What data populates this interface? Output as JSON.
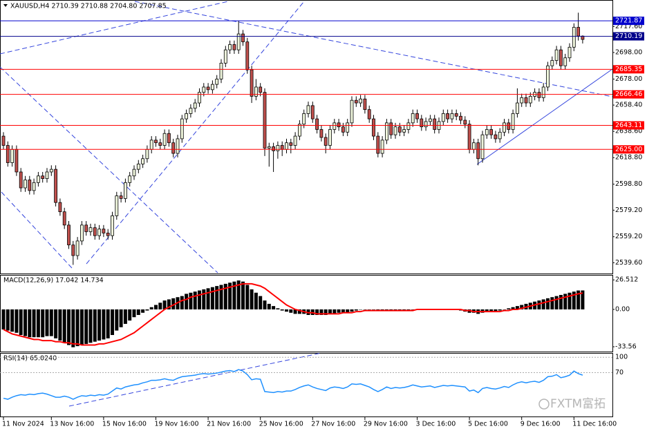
{
  "watermark": "FXTM富拓",
  "chart_data": [
    {
      "type": "candlestick",
      "title": "XAUUSD,H4  2710.39 2710.88 2704.80 2707.85",
      "bull_color": "#eef5dc",
      "bear_color": "#c0504d",
      "open": [
        2635,
        2628,
        2615,
        2625,
        2608,
        2596,
        2602,
        2594,
        2600,
        2605,
        2603,
        2608,
        2610,
        2585,
        2578,
        2568,
        2553,
        2545,
        2556,
        2568,
        2563,
        2566,
        2560,
        2565,
        2562,
        2560,
        2575,
        2590,
        2588,
        2600,
        2605,
        2610,
        2614,
        2618,
        2625,
        2632,
        2630,
        2628,
        2637,
        2630,
        2622,
        2633,
        2648,
        2652,
        2656,
        2660,
        2668,
        2672,
        2670,
        2674,
        2678,
        2690,
        2700,
        2704,
        2700,
        2712,
        2706,
        2685,
        2665,
        2672,
        2668,
        2626,
        2627,
        2624,
        2628,
        2625,
        2630,
        2628,
        2635,
        2644,
        2652,
        2658,
        2648,
        2640,
        2634,
        2628,
        2640,
        2645,
        2642,
        2638,
        2645,
        2662,
        2660,
        2663,
        2655,
        2648,
        2635,
        2622,
        2632,
        2645,
        2636,
        2642,
        2638,
        2640,
        2645,
        2652,
        2648,
        2642,
        2646,
        2648,
        2640,
        2646,
        2652,
        2648,
        2652,
        2650,
        2647,
        2644,
        2625,
        2630,
        2618,
        2636,
        2640,
        2636,
        2633,
        2638,
        2645,
        2640,
        2652,
        2660,
        2664,
        2660,
        2665,
        2668,
        2664,
        2672,
        2688,
        2692,
        2700,
        2688,
        2694,
        2702,
        2717,
        2710.39
      ],
      "high": [
        2638,
        2631,
        2628,
        2628,
        2611,
        2605,
        2605,
        2603,
        2608,
        2608,
        2611,
        2613,
        2613,
        2588,
        2581,
        2571,
        2556,
        2559,
        2571,
        2571,
        2569,
        2569,
        2568,
        2568,
        2565,
        2578,
        2593,
        2593,
        2603,
        2608,
        2613,
        2617,
        2621,
        2628,
        2635,
        2635,
        2633,
        2640,
        2640,
        2633,
        2636,
        2651,
        2655,
        2659,
        2663,
        2671,
        2675,
        2675,
        2677,
        2681,
        2693,
        2703,
        2707,
        2707,
        2722,
        2715,
        2709,
        2688,
        2678,
        2675,
        2671,
        2630,
        2630,
        2631,
        2631,
        2633,
        2633,
        2638,
        2647,
        2655,
        2661,
        2661,
        2651,
        2643,
        2637,
        2643,
        2648,
        2648,
        2645,
        2648,
        2665,
        2665,
        2666,
        2666,
        2658,
        2651,
        2638,
        2635,
        2648,
        2648,
        2645,
        2645,
        2643,
        2648,
        2655,
        2655,
        2651,
        2649,
        2651,
        2651,
        2649,
        2655,
        2655,
        2655,
        2655,
        2653,
        2650,
        2647,
        2633,
        2633,
        2639,
        2643,
        2643,
        2639,
        2641,
        2648,
        2648,
        2655,
        2671,
        2667,
        2667,
        2668,
        2671,
        2671,
        2675,
        2691,
        2695,
        2703,
        2703,
        2697,
        2705,
        2720,
        2728,
        2710.88
      ],
      "low": [
        2625,
        2612,
        2612,
        2605,
        2593,
        2593,
        2591,
        2591,
        2597,
        2600,
        2600,
        2605,
        2582,
        2575,
        2565,
        2550,
        2538,
        2542,
        2553,
        2560,
        2560,
        2557,
        2557,
        2559,
        2557,
        2557,
        2572,
        2585,
        2585,
        2597,
        2602,
        2607,
        2611,
        2615,
        2622,
        2627,
        2625,
        2625,
        2627,
        2619,
        2619,
        2630,
        2645,
        2649,
        2653,
        2657,
        2665,
        2667,
        2667,
        2671,
        2675,
        2687,
        2697,
        2697,
        2697,
        2703,
        2682,
        2660,
        2662,
        2665,
        2620,
        2612,
        2608,
        2618,
        2620,
        2622,
        2622,
        2625,
        2632,
        2641,
        2649,
        2645,
        2637,
        2631,
        2622,
        2625,
        2637,
        2639,
        2635,
        2635,
        2642,
        2657,
        2657,
        2652,
        2645,
        2632,
        2619,
        2619,
        2629,
        2633,
        2633,
        2635,
        2635,
        2637,
        2642,
        2645,
        2639,
        2639,
        2643,
        2637,
        2637,
        2643,
        2645,
        2645,
        2647,
        2644,
        2641,
        2622,
        2622,
        2613,
        2615,
        2633,
        2633,
        2630,
        2630,
        2635,
        2637,
        2637,
        2649,
        2657,
        2657,
        2657,
        2662,
        2661,
        2661,
        2669,
        2685,
        2689,
        2685,
        2685,
        2691,
        2699,
        2707,
        2704.8
      ],
      "close": [
        2628,
        2615,
        2625,
        2608,
        2596,
        2602,
        2594,
        2600,
        2605,
        2603,
        2608,
        2610,
        2585,
        2578,
        2568,
        2553,
        2545,
        2556,
        2568,
        2563,
        2566,
        2560,
        2565,
        2562,
        2560,
        2575,
        2590,
        2588,
        2600,
        2605,
        2610,
        2614,
        2618,
        2625,
        2632,
        2630,
        2628,
        2637,
        2630,
        2622,
        2633,
        2648,
        2652,
        2656,
        2660,
        2668,
        2672,
        2670,
        2674,
        2678,
        2690,
        2700,
        2704,
        2700,
        2712,
        2706,
        2685,
        2665,
        2672,
        2668,
        2626,
        2627,
        2624,
        2628,
        2625,
        2630,
        2628,
        2635,
        2644,
        2652,
        2658,
        2648,
        2640,
        2634,
        2628,
        2640,
        2645,
        2642,
        2638,
        2645,
        2662,
        2660,
        2663,
        2655,
        2648,
        2635,
        2622,
        2632,
        2645,
        2636,
        2642,
        2638,
        2640,
        2645,
        2652,
        2648,
        2642,
        2646,
        2648,
        2640,
        2646,
        2652,
        2648,
        2652,
        2650,
        2647,
        2644,
        2625,
        2630,
        2618,
        2636,
        2640,
        2636,
        2633,
        2638,
        2645,
        2640,
        2652,
        2660,
        2664,
        2660,
        2665,
        2668,
        2664,
        2672,
        2688,
        2692,
        2700,
        2688,
        2694,
        2702,
        2717,
        2710.39,
        2707.85
      ],
      "ylim": [
        2532,
        2736
      ],
      "yticks": [
        {
          "value": 2717.6,
          "label": "2717.60"
        },
        {
          "value": 2698,
          "label": "2698.00"
        },
        {
          "value": 2678,
          "label": "2678.00"
        },
        {
          "value": 2658.4,
          "label": "2658.40"
        },
        {
          "value": 2638.6,
          "label": "2638.60"
        },
        {
          "value": 2618.8,
          "label": "2618.80"
        },
        {
          "value": 2598.8,
          "label": "2598.80"
        },
        {
          "value": 2579.2,
          "label": "2579.20"
        },
        {
          "value": 2559.2,
          "label": "2559.20"
        },
        {
          "value": 2539.6,
          "label": "2539.60"
        }
      ],
      "levels": [
        {
          "value": 2721.87,
          "color": "#0000cd"
        },
        {
          "value": 2710.19,
          "color": "#00008b"
        },
        {
          "value": 2685.35,
          "color": "#ff0000"
        },
        {
          "value": 2666.46,
          "color": "#ff0000"
        },
        {
          "value": 2643.11,
          "color": "#ff0000"
        },
        {
          "value": 2625,
          "label": "2625.00",
          "color": "#ff0000"
        }
      ],
      "xticks": [
        {
          "value": 0,
          "label": "11 Nov 2024"
        },
        {
          "value": 11,
          "label": "13 Nov 16:00"
        },
        {
          "value": 23,
          "label": "15 Nov 16:00"
        },
        {
          "value": 35,
          "label": "19 Nov 16:00"
        },
        {
          "value": 47,
          "label": "21 Nov 16:00"
        },
        {
          "value": 59,
          "label": "25 Nov 16:00"
        },
        {
          "value": 71,
          "label": "27 Nov 16:00"
        },
        {
          "value": 83,
          "label": "29 Nov 16:00"
        },
        {
          "value": 95,
          "label": "3 Dec 16:00"
        },
        {
          "value": 107,
          "label": "5 Dec 16:00"
        },
        {
          "value": 119,
          "label": "9 Dec 16:00"
        },
        {
          "value": 131,
          "label": "11 Dec 16:00"
        }
      ]
    },
    {
      "type": "macd",
      "title": "MACD(12,26,9) 17.042 14.734",
      "color": "#000000",
      "signal_color": "#ff0000",
      "values": [
        -18,
        -19,
        -20,
        -21,
        -23,
        -24,
        -25,
        -25,
        -25,
        -25,
        -24,
        -24,
        -26,
        -28,
        -30,
        -32,
        -34,
        -33,
        -32,
        -31,
        -30,
        -29,
        -28,
        -27,
        -26,
        -23,
        -19,
        -16,
        -13,
        -10,
        -7,
        -5,
        -3,
        -1,
        2,
        4,
        6,
        8,
        9,
        10,
        11,
        12,
        14,
        15,
        16,
        17,
        18,
        19,
        20,
        21,
        22,
        23,
        24,
        25,
        26,
        25,
        22,
        18,
        15,
        12,
        8,
        5,
        3,
        1,
        -1,
        -2,
        -3,
        -4,
        -4,
        -4,
        -5,
        -5,
        -5,
        -5,
        -5,
        -4,
        -4,
        -3,
        -3,
        -3,
        -2,
        -1,
        0,
        0,
        0,
        0,
        -1,
        -1,
        -1,
        -1,
        -1,
        -1,
        -1,
        -1,
        0,
        0,
        0,
        0,
        0,
        0,
        0,
        0,
        0,
        0,
        0,
        -1,
        -2,
        -3,
        -3,
        -4,
        -3,
        -2,
        -2,
        -2,
        -1,
        0,
        1,
        2,
        3,
        4,
        5,
        6,
        7,
        8,
        9,
        10,
        11,
        12,
        13,
        14,
        15,
        16,
        17,
        17.042
      ],
      "signal": [
        -18,
        -20,
        -22,
        -23,
        -24,
        -25,
        -26,
        -27,
        -27,
        -28,
        -28,
        -28,
        -29,
        -29,
        -30,
        -30,
        -31,
        -31,
        -32,
        -32,
        -32,
        -32,
        -31,
        -31,
        -30,
        -29,
        -28,
        -27,
        -25,
        -23,
        -21,
        -18,
        -15,
        -12,
        -9,
        -6,
        -3,
        0,
        2,
        4,
        6,
        8,
        9,
        11,
        12,
        13,
        14,
        15,
        16,
        17,
        18,
        19,
        20,
        21,
        22,
        23,
        23,
        23,
        22,
        21,
        19,
        16,
        13,
        10,
        7,
        4,
        2,
        0,
        -1,
        -2,
        -3,
        -3,
        -4,
        -4,
        -4,
        -4,
        -4,
        -4,
        -3,
        -3,
        -3,
        -2,
        -2,
        -1,
        -1,
        -1,
        -1,
        -1,
        -1,
        -1,
        -1,
        -1,
        -1,
        -1,
        -1,
        0,
        0,
        0,
        0,
        0,
        0,
        0,
        0,
        0,
        0,
        0,
        -1,
        -1,
        -2,
        -2,
        -2,
        -2,
        -2,
        -2,
        -2,
        -1,
        -1,
        0,
        0,
        1,
        2,
        3,
        4,
        5,
        6,
        7,
        8,
        9,
        10,
        11,
        12,
        13,
        14,
        14.734
      ],
      "ylim": [
        -38.5,
        31
      ],
      "yticks": [
        26.512,
        {
          "value": 0,
          "label": "0.00"
        },
        -33.56
      ]
    },
    {
      "type": "line",
      "title": "RSI(14) 65.0240",
      "color": "#1e90ff",
      "values": [
        20,
        18,
        22,
        25,
        27,
        26,
        28,
        27,
        29,
        30,
        28,
        25,
        22,
        22,
        24,
        22,
        18,
        22,
        25,
        24,
        26,
        25,
        27,
        26,
        28,
        34,
        40,
        38,
        42,
        44,
        46,
        47,
        50,
        52,
        55,
        55,
        56,
        58,
        56,
        55,
        59,
        62,
        63,
        64,
        65,
        67,
        68,
        67,
        68,
        69,
        71,
        73,
        74,
        72,
        76,
        73,
        66,
        56,
        58,
        57,
        33,
        32,
        31,
        33,
        32,
        34,
        34,
        37,
        41,
        44,
        46,
        42,
        39,
        37,
        35,
        40,
        42,
        41,
        39,
        42,
        48,
        47,
        48,
        45,
        42,
        37,
        33,
        37,
        42,
        39,
        41,
        40,
        41,
        43,
        46,
        44,
        42,
        43,
        44,
        41,
        43,
        45,
        44,
        45,
        44,
        43,
        42,
        34,
        36,
        31,
        39,
        41,
        39,
        38,
        40,
        43,
        41,
        46,
        50,
        52,
        50,
        52,
        53,
        51,
        55,
        62,
        63,
        66,
        60,
        62,
        65,
        73,
        68,
        65.024
      ],
      "ylim": [
        -17,
        107
      ],
      "yticks": [
        100,
        70
      ]
    }
  ]
}
